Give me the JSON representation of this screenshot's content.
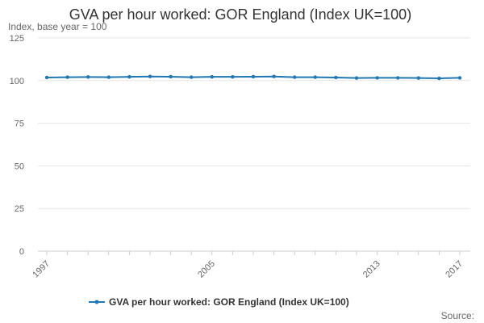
{
  "chart_data": {
    "type": "line",
    "title": "GVA per hour worked: GOR England (Index UK=100)",
    "subtitle": "Index, base year = 100",
    "x": [
      1997,
      1998,
      1999,
      2000,
      2001,
      2002,
      2003,
      2004,
      2005,
      2006,
      2007,
      2008,
      2009,
      2010,
      2011,
      2012,
      2013,
      2014,
      2015,
      2016,
      2017
    ],
    "x_tick_labels": [
      "1997",
      "2005",
      "2013",
      "2017"
    ],
    "x_tick_values": [
      1997,
      2005,
      2013,
      2017
    ],
    "series": [
      {
        "name": "GVA per hour worked: GOR England (Index UK=100)",
        "color": "#1f77b4",
        "values": [
          101.8,
          102.0,
          102.1,
          102.0,
          102.2,
          102.4,
          102.3,
          102.0,
          102.2,
          102.2,
          102.3,
          102.4,
          102.0,
          102.0,
          101.8,
          101.5,
          101.6,
          101.6,
          101.5,
          101.3,
          101.6
        ]
      }
    ],
    "ylim": [
      0,
      125
    ],
    "y_ticks": [
      0,
      25,
      50,
      75,
      100,
      125
    ],
    "grid": true,
    "legend": "bottom-center",
    "source_label": "Source:"
  }
}
